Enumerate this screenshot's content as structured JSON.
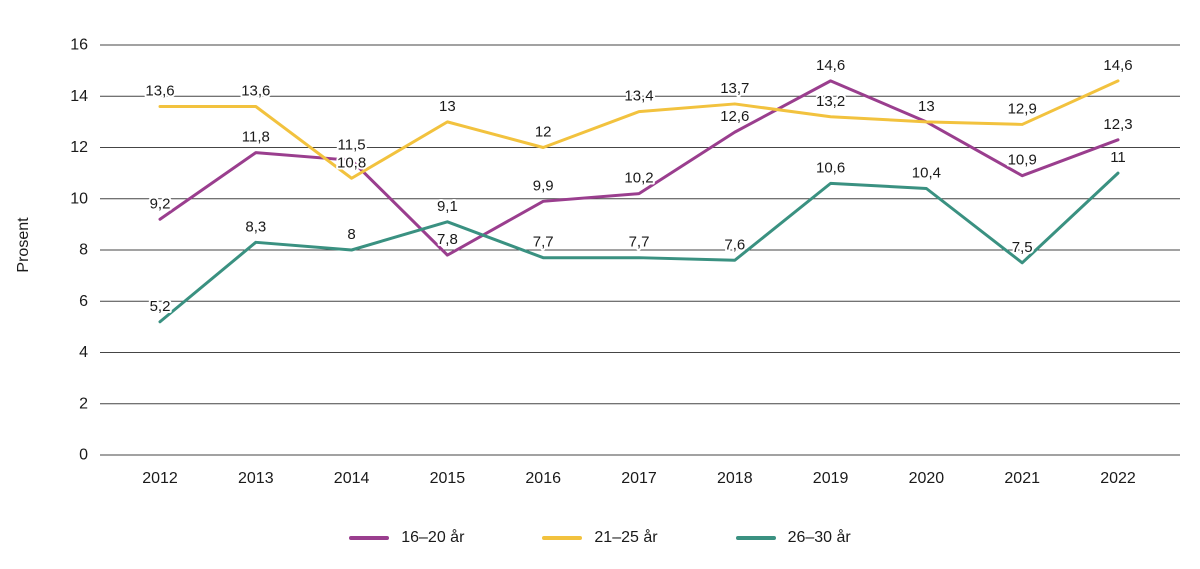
{
  "chart_data": {
    "type": "line",
    "title": "",
    "xlabel": "",
    "ylabel": "Prosent",
    "ylim": [
      0,
      16
    ],
    "ytick_step": 2,
    "grid": true,
    "legend_position": "bottom",
    "text_color": "#1a1a1a",
    "grid_color": "#454545",
    "categories": [
      "2012",
      "2013",
      "2014",
      "2015",
      "2016",
      "2017",
      "2018",
      "2019",
      "2020",
      "2021",
      "2022"
    ],
    "series": [
      {
        "name": "16–20 år",
        "color": "#9a3e8e",
        "values": [
          9.2,
          11.8,
          11.5,
          7.8,
          9.9,
          10.2,
          12.6,
          14.6,
          13,
          10.9,
          12.3
        ],
        "labels": [
          "9,2",
          "11,8",
          "11,5",
          "7,8",
          "9,9",
          "10,2",
          "12,6",
          "14,6",
          "13",
          "10,9",
          "12,3"
        ]
      },
      {
        "name": "21–25 år",
        "color": "#f2c23e",
        "values": [
          13.6,
          13.6,
          10.8,
          13,
          12,
          13.4,
          13.7,
          13.2,
          13,
          12.9,
          14.6
        ],
        "labels": [
          "13,6",
          "13,6",
          "10,8",
          "13",
          "12",
          "13,4",
          "13,7",
          "13,2",
          "",
          "12,9",
          "14,6"
        ]
      },
      {
        "name": "26–30 år",
        "color": "#3a9181",
        "values": [
          5.2,
          8.3,
          8,
          9.1,
          7.7,
          7.7,
          7.6,
          10.6,
          10.4,
          7.5,
          11
        ],
        "labels": [
          "5,2",
          "8,3",
          "8",
          "9,1",
          "7,7",
          "7,7",
          "7,6",
          "10,6",
          "10,4",
          "7,5",
          "11"
        ]
      }
    ]
  }
}
